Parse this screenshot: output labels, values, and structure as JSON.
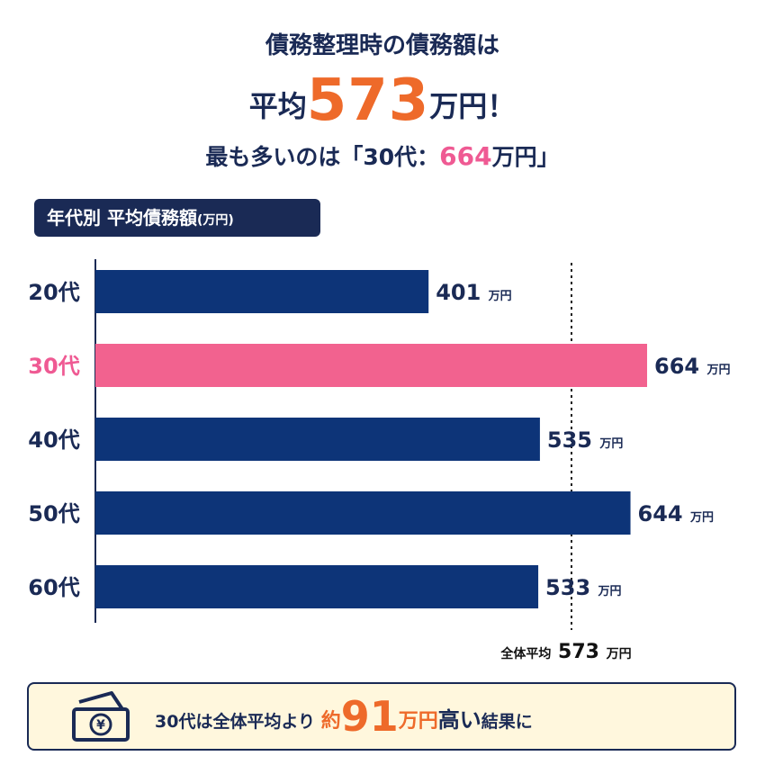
{
  "header": {
    "line1": "債務整理時の債務額は",
    "avg_prefix": "平均",
    "avg_value": "573",
    "avg_suffix": "万円！",
    "line3_prefix": "最も多いのは「30代：",
    "line3_value": "664",
    "line3_suffix": "万円」"
  },
  "section_tag": {
    "label": "年代別 平均債務額",
    "unit": "(万円)"
  },
  "chart_data": {
    "type": "bar",
    "orientation": "horizontal",
    "categories": [
      "20代",
      "30代",
      "40代",
      "50代",
      "60代"
    ],
    "values": [
      401,
      664,
      535,
      644,
      533
    ],
    "value_unit": "万円",
    "highlight_category": "30代",
    "reference_line": {
      "label": "全体平均",
      "value": 573,
      "unit": "万円"
    },
    "xlim": [
      0,
      664
    ],
    "grid": false,
    "colors": {
      "default": "#0d3478",
      "highlight": "#f2628f"
    }
  },
  "callout": {
    "icon": "yen-banknote-icon",
    "text1": "30代は全体平均より",
    "text2": "約",
    "value": "91",
    "unit": "万円",
    "text3": "高い",
    "text4": "結果に"
  },
  "colors": {
    "navy": "#1a2a55",
    "orange": "#ee6a2a",
    "pink": "#ef5a93",
    "note_bg": "#fff7dd"
  }
}
